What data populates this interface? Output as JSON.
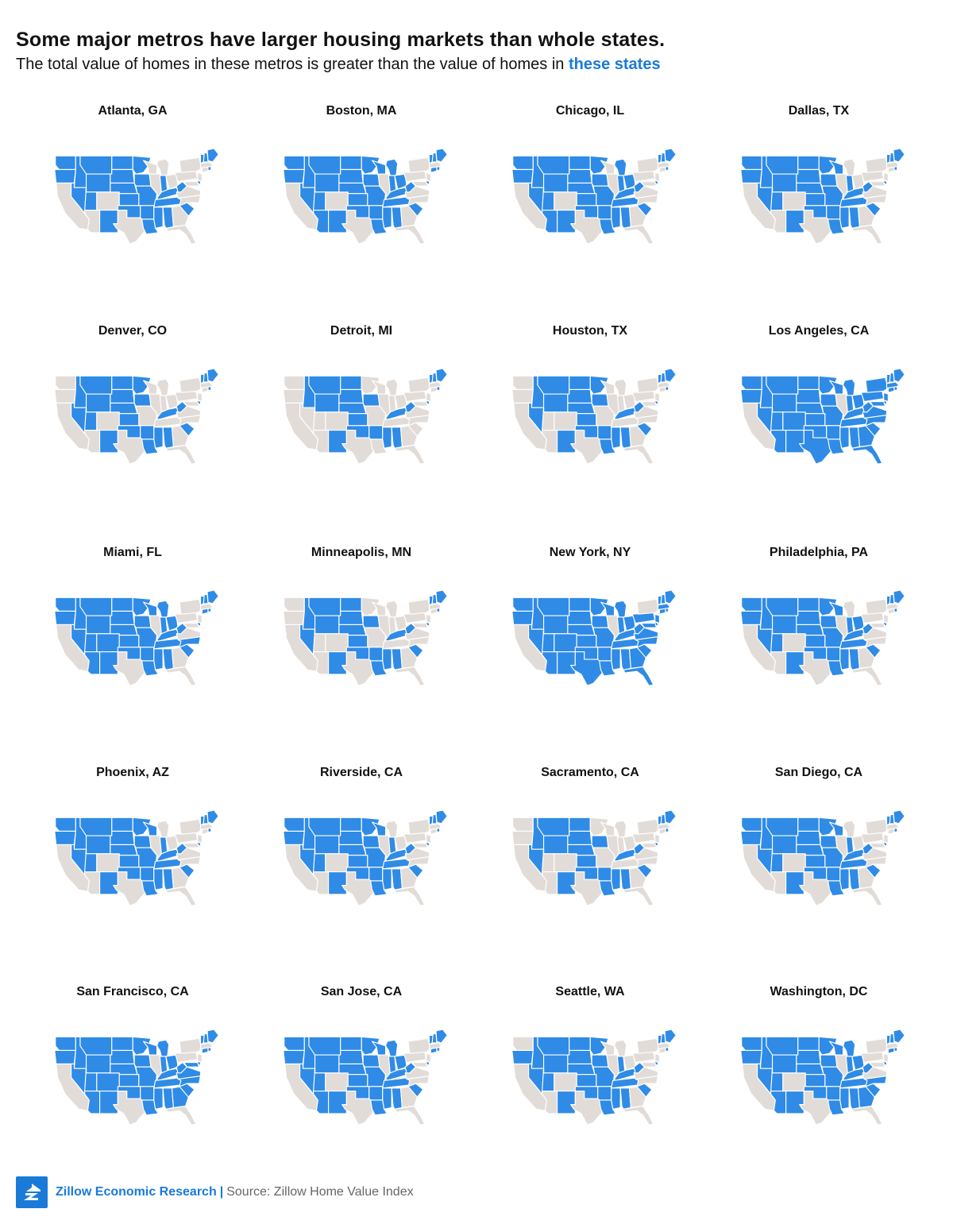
{
  "header": {
    "title": "Some major metros have larger housing markets than whole states.",
    "subtitle_prefix": "The total value of homes in these metros is greater than the value of homes in",
    "subtitle_highlight": "these states"
  },
  "colors": {
    "highlighted_state": "#2f8be6",
    "other_state": "#e2dcd8",
    "state_border": "#ffffff",
    "brand": "#1a7ad8"
  },
  "legend": {
    "highlighted_meaning": "these states"
  },
  "metros": [
    {
      "name": "Atlanta, GA",
      "states": [
        "WA",
        "OR",
        "ID",
        "MT",
        "WY",
        "ND",
        "SD",
        "NE",
        "NV",
        "UT",
        "NM",
        "MN",
        "IA",
        "MO",
        "KS",
        "OK",
        "AR",
        "LA",
        "MS",
        "AL",
        "TN",
        "KY",
        "IN",
        "WV",
        "SC",
        "DE",
        "RI",
        "NH",
        "VT",
        "ME"
      ]
    },
    {
      "name": "Boston, MA",
      "states": [
        "WA",
        "OR",
        "ID",
        "MT",
        "WY",
        "ND",
        "SD",
        "NE",
        "NV",
        "UT",
        "AZ",
        "NM",
        "MN",
        "WI",
        "IA",
        "MO",
        "KS",
        "OK",
        "AR",
        "LA",
        "MS",
        "AL",
        "TN",
        "KY",
        "IN",
        "MI",
        "OH",
        "WV",
        "SC",
        "DE",
        "RI",
        "NH",
        "VT",
        "ME",
        "CT"
      ]
    },
    {
      "name": "Chicago, IL",
      "states": [
        "WA",
        "OR",
        "ID",
        "MT",
        "WY",
        "ND",
        "SD",
        "NE",
        "NV",
        "UT",
        "AZ",
        "NM",
        "MN",
        "IA",
        "MO",
        "KS",
        "OK",
        "AR",
        "LA",
        "MS",
        "AL",
        "TN",
        "KY",
        "IN",
        "MI",
        "OH",
        "WV",
        "SC",
        "DE",
        "RI",
        "NH",
        "VT",
        "ME"
      ]
    },
    {
      "name": "Dallas, TX",
      "states": [
        "WA",
        "OR",
        "ID",
        "MT",
        "WY",
        "ND",
        "SD",
        "NE",
        "NV",
        "UT",
        "NM",
        "MN",
        "WI",
        "IA",
        "MO",
        "KS",
        "OK",
        "AR",
        "LA",
        "MS",
        "AL",
        "TN",
        "KY",
        "IN",
        "WV",
        "SC",
        "DE",
        "RI",
        "NH",
        "VT",
        "ME"
      ]
    },
    {
      "name": "Denver, CO",
      "states": [
        "ID",
        "MT",
        "WY",
        "ND",
        "SD",
        "NE",
        "NV",
        "UT",
        "NM",
        "MN",
        "IA",
        "KS",
        "OK",
        "AR",
        "LA",
        "MS",
        "AL",
        "KY",
        "WV",
        "SC",
        "DE",
        "RI",
        "NH",
        "VT",
        "ME"
      ]
    },
    {
      "name": "Detroit, MI",
      "states": [
        "ID",
        "MT",
        "WY",
        "ND",
        "SD",
        "NE",
        "NM",
        "IA",
        "KS",
        "OK",
        "AR",
        "MS",
        "AL",
        "KY",
        "WV",
        "DE",
        "RI",
        "NH",
        "VT",
        "ME"
      ]
    },
    {
      "name": "Houston, TX",
      "states": [
        "ID",
        "MT",
        "WY",
        "ND",
        "SD",
        "NE",
        "NV",
        "NM",
        "MN",
        "IA",
        "KS",
        "OK",
        "AR",
        "LA",
        "MS",
        "AL",
        "KY",
        "WV",
        "SC",
        "DE",
        "RI",
        "NH",
        "VT",
        "ME"
      ]
    },
    {
      "name": "Los Angeles, CA",
      "states": [
        "WA",
        "OR",
        "ID",
        "MT",
        "WY",
        "ND",
        "SD",
        "NE",
        "NV",
        "UT",
        "AZ",
        "CO",
        "NM",
        "TX",
        "MN",
        "WI",
        "IA",
        "MO",
        "KS",
        "OK",
        "AR",
        "LA",
        "MS",
        "AL",
        "TN",
        "KY",
        "IN",
        "MI",
        "OH",
        "WV",
        "VA",
        "NC",
        "SC",
        "GA",
        "FL",
        "PA",
        "NY",
        "NJ",
        "DE",
        "MD",
        "CT",
        "RI",
        "MA",
        "NH",
        "VT",
        "ME"
      ]
    },
    {
      "name": "Miami, FL",
      "states": [
        "WA",
        "OR",
        "ID",
        "MT",
        "WY",
        "ND",
        "SD",
        "NE",
        "NV",
        "UT",
        "AZ",
        "CO",
        "NM",
        "MN",
        "WI",
        "IA",
        "MO",
        "KS",
        "OK",
        "AR",
        "LA",
        "MS",
        "AL",
        "TN",
        "KY",
        "IN",
        "MI",
        "OH",
        "WV",
        "NC",
        "SC",
        "DE",
        "RI",
        "NH",
        "VT",
        "ME",
        "CT"
      ]
    },
    {
      "name": "Minneapolis, MN",
      "states": [
        "ID",
        "MT",
        "WY",
        "ND",
        "SD",
        "NE",
        "NV",
        "NM",
        "IA",
        "KS",
        "OK",
        "AR",
        "LA",
        "MS",
        "AL",
        "KY",
        "WV",
        "SC",
        "DE",
        "RI",
        "NH",
        "VT",
        "ME"
      ]
    },
    {
      "name": "New York, NY",
      "states": [
        "WA",
        "OR",
        "ID",
        "MT",
        "WY",
        "ND",
        "SD",
        "NE",
        "NV",
        "UT",
        "AZ",
        "CO",
        "NM",
        "TX",
        "MN",
        "WI",
        "IA",
        "MO",
        "KS",
        "OK",
        "AR",
        "LA",
        "MS",
        "AL",
        "TN",
        "KY",
        "IN",
        "MI",
        "OH",
        "WV",
        "VA",
        "NC",
        "SC",
        "GA",
        "FL",
        "PA",
        "NJ",
        "DE",
        "MD",
        "CT",
        "RI",
        "MA",
        "NH",
        "VT",
        "ME"
      ]
    },
    {
      "name": "Philadelphia, PA",
      "states": [
        "WA",
        "OR",
        "ID",
        "MT",
        "WY",
        "ND",
        "SD",
        "NE",
        "NV",
        "UT",
        "NM",
        "MN",
        "WI",
        "IA",
        "MO",
        "KS",
        "OK",
        "AR",
        "LA",
        "MS",
        "AL",
        "TN",
        "KY",
        "IN",
        "OH",
        "WV",
        "SC",
        "DE",
        "RI",
        "NH",
        "VT",
        "ME"
      ]
    },
    {
      "name": "Phoenix, AZ",
      "states": [
        "WA",
        "OR",
        "ID",
        "MT",
        "WY",
        "ND",
        "SD",
        "NE",
        "NV",
        "UT",
        "NM",
        "MN",
        "WI",
        "IA",
        "MO",
        "KS",
        "OK",
        "AR",
        "LA",
        "MS",
        "AL",
        "TN",
        "KY",
        "IN",
        "WV",
        "SC",
        "DE",
        "RI",
        "NH",
        "VT",
        "ME"
      ]
    },
    {
      "name": "Riverside, CA",
      "states": [
        "WA",
        "OR",
        "ID",
        "MT",
        "WY",
        "ND",
        "SD",
        "NE",
        "NV",
        "UT",
        "NM",
        "MN",
        "WI",
        "IA",
        "MO",
        "KS",
        "OK",
        "AR",
        "LA",
        "MS",
        "AL",
        "TN",
        "KY",
        "IN",
        "WV",
        "SC",
        "DE",
        "RI",
        "NH",
        "VT",
        "ME"
      ]
    },
    {
      "name": "Sacramento, CA",
      "states": [
        "ID",
        "MT",
        "WY",
        "ND",
        "SD",
        "NE",
        "NV",
        "NM",
        "IA",
        "KS",
        "OK",
        "AR",
        "LA",
        "MS",
        "AL",
        "KY",
        "WV",
        "SC",
        "DE",
        "RI",
        "NH",
        "VT",
        "ME"
      ]
    },
    {
      "name": "San Diego, CA",
      "states": [
        "WA",
        "OR",
        "ID",
        "MT",
        "WY",
        "ND",
        "SD",
        "NE",
        "NV",
        "UT",
        "NM",
        "MN",
        "WI",
        "IA",
        "MO",
        "KS",
        "OK",
        "AR",
        "LA",
        "MS",
        "AL",
        "TN",
        "KY",
        "IN",
        "WV",
        "SC",
        "DE",
        "RI",
        "NH",
        "VT",
        "ME"
      ]
    },
    {
      "name": "San Francisco, CA",
      "states": [
        "WA",
        "OR",
        "ID",
        "MT",
        "WY",
        "ND",
        "SD",
        "NE",
        "NV",
        "UT",
        "AZ",
        "CO",
        "NM",
        "MN",
        "WI",
        "IA",
        "MO",
        "KS",
        "OK",
        "AR",
        "LA",
        "MS",
        "AL",
        "TN",
        "KY",
        "IN",
        "MI",
        "OH",
        "WV",
        "VA",
        "NC",
        "SC",
        "GA",
        "DE",
        "MD",
        "CT",
        "RI",
        "NH",
        "VT",
        "ME"
      ]
    },
    {
      "name": "San Jose, CA",
      "states": [
        "WA",
        "OR",
        "ID",
        "MT",
        "WY",
        "ND",
        "SD",
        "NE",
        "NV",
        "UT",
        "AZ",
        "NM",
        "MN",
        "WI",
        "IA",
        "MO",
        "KS",
        "OK",
        "AR",
        "LA",
        "MS",
        "AL",
        "TN",
        "KY",
        "IN",
        "MI",
        "OH",
        "WV",
        "SC",
        "DE",
        "RI",
        "NH",
        "VT",
        "ME",
        "CT"
      ]
    },
    {
      "name": "Seattle, WA",
      "states": [
        "OR",
        "ID",
        "MT",
        "WY",
        "ND",
        "SD",
        "NE",
        "NV",
        "UT",
        "NM",
        "MN",
        "IA",
        "MO",
        "KS",
        "OK",
        "AR",
        "LA",
        "MS",
        "AL",
        "TN",
        "KY",
        "IN",
        "WV",
        "SC",
        "DE",
        "RI",
        "NH",
        "VT",
        "ME"
      ]
    },
    {
      "name": "Washington, DC",
      "states": [
        "WA",
        "OR",
        "ID",
        "MT",
        "WY",
        "ND",
        "SD",
        "NE",
        "NV",
        "UT",
        "AZ",
        "NM",
        "MN",
        "WI",
        "IA",
        "MO",
        "KS",
        "OK",
        "AR",
        "LA",
        "MS",
        "AL",
        "TN",
        "KY",
        "IN",
        "MI",
        "OH",
        "WV",
        "NC",
        "SC",
        "GA",
        "DE",
        "RI",
        "NH",
        "VT",
        "ME",
        "CT"
      ]
    }
  ],
  "footer": {
    "logo_icon": "zillow-house-logo-icon",
    "org": "Zillow Economic Research",
    "separator": "|",
    "source": "Source: Zillow Home Value Index"
  }
}
